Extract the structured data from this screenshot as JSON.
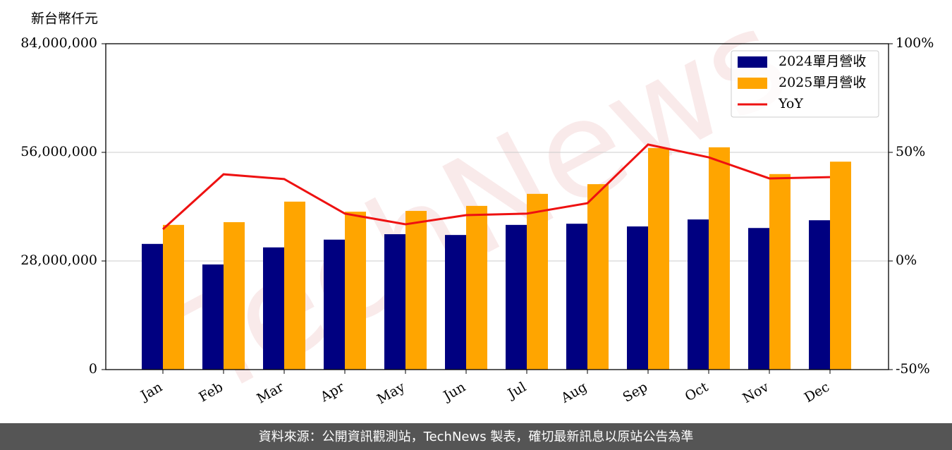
{
  "chart_data": {
    "type": "bar-line",
    "ylabel": "新台幣仟元",
    "watermark": "TechNews",
    "footer": "資料來源：公開資訊觀測站，TechNews 製表，確切最新訊息以原站公告為準",
    "categories": [
      "Jan",
      "Feb",
      "Mar",
      "Apr",
      "May",
      "Jun",
      "Jul",
      "Aug",
      "Sep",
      "Oct",
      "Nov",
      "Dec"
    ],
    "series": [
      {
        "name": "2024單月營收",
        "color": "#000080",
        "type": "bar",
        "values": [
          32400000,
          27100000,
          31500000,
          33500000,
          34900000,
          34700000,
          37300000,
          37600000,
          36900000,
          38700000,
          36500000,
          38500000
        ]
      },
      {
        "name": "2025單月營收",
        "color": "#ffa500",
        "type": "bar",
        "values": [
          37300000,
          38000000,
          43300000,
          40700000,
          40900000,
          42200000,
          45300000,
          47800000,
          57100000,
          57300000,
          50400000,
          53600000
        ]
      },
      {
        "name": "YoY",
        "color": "#ee1111",
        "type": "line",
        "axis": "y2",
        "values": [
          14.6,
          39.9,
          37.7,
          21.8,
          16.9,
          21.1,
          21.8,
          26.6,
          53.6,
          47.7,
          38.0,
          38.6
        ]
      }
    ],
    "ylim": [
      0,
      84000000
    ],
    "yticks": [
      0,
      {
        "value": 28000000,
        "label": "28,000,000"
      },
      {
        "value": 56000000,
        "label": "56,000,000"
      },
      {
        "value": 84000000,
        "label": "84,000,000"
      }
    ],
    "y2lim": [
      -50,
      100
    ],
    "y2ticks": [
      {
        "value": -50,
        "label": "-50%"
      },
      {
        "value": 0,
        "label": "0%"
      },
      {
        "value": 50,
        "label": "50%"
      },
      {
        "value": 100,
        "label": "100%"
      }
    ],
    "grid": true,
    "legend": "upper right"
  }
}
